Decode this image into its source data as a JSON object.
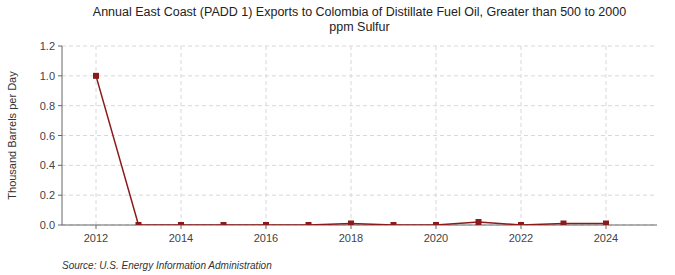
{
  "chart_data": {
    "type": "line",
    "title": "Annual East Coast (PADD 1) Exports to Colombia of Distillate Fuel Oil, Greater than 500 to 2000\nppm Sulfur",
    "y_label": "Thousand Barrels per Day",
    "annotations": [
      "Source: U.S. Energy Information Administration"
    ],
    "x": [
      2012,
      2013,
      2014,
      2015,
      2016,
      2017,
      2018,
      2019,
      2020,
      2021,
      2022,
      2023,
      2024
    ],
    "values": [
      1.0,
      0.0,
      0.0,
      0.0,
      0.0,
      0.0,
      0.01,
      0.0,
      0.0,
      0.02,
      0.0,
      0.01,
      0.01
    ],
    "color": "#8b1a1a",
    "marker": "square",
    "xlim": [
      2011.2,
      2025.2
    ],
    "xticks": [
      2012,
      2014,
      2016,
      2018,
      2020,
      2022,
      2024
    ],
    "ylim": [
      0.0,
      1.2
    ],
    "yticks": [
      {
        "value": 0.0,
        "label": "0.0"
      },
      {
        "value": 0.2,
        "label": "0.2"
      },
      {
        "value": 0.4,
        "label": "0.4"
      },
      {
        "value": 0.6,
        "label": "0.6"
      },
      {
        "value": 0.8,
        "label": "0.8"
      },
      {
        "value": 1.0,
        "label": "1.0"
      },
      {
        "value": 1.2,
        "label": "1.2"
      }
    ],
    "grid": true
  }
}
